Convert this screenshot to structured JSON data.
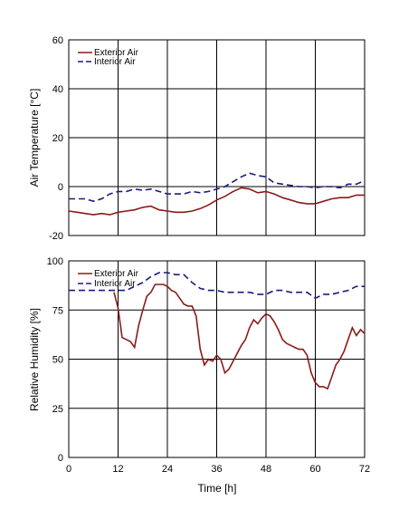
{
  "chart_data": [
    {
      "type": "line",
      "title": "",
      "xlabel": "",
      "ylabel": "Air Temperature [°C]",
      "xlim": [
        0,
        72
      ],
      "ylim": [
        -20,
        60
      ],
      "xticks": [
        0,
        12,
        24,
        36,
        48,
        60,
        72
      ],
      "xtick_labels_shown": false,
      "yticks": [
        -20,
        0,
        20,
        40,
        60
      ],
      "grid": true,
      "legend_position": "top-left",
      "series": [
        {
          "name": "Exterior Air",
          "color": "#8b1a1a",
          "dash": "solid",
          "points": [
            [
              0,
              -10
            ],
            [
              2,
              -10.5
            ],
            [
              4,
              -11
            ],
            [
              6,
              -11.5
            ],
            [
              8,
              -11
            ],
            [
              10,
              -11.5
            ],
            [
              12,
              -10.5
            ],
            [
              14,
              -10
            ],
            [
              16,
              -9.5
            ],
            [
              18,
              -8.5
            ],
            [
              20,
              -8
            ],
            [
              22,
              -9.5
            ],
            [
              24,
              -10
            ],
            [
              26,
              -10.5
            ],
            [
              28,
              -10.5
            ],
            [
              30,
              -10
            ],
            [
              32,
              -9
            ],
            [
              34,
              -7.5
            ],
            [
              36,
              -5.5
            ],
            [
              38,
              -4
            ],
            [
              40,
              -2
            ],
            [
              42,
              -0.5
            ],
            [
              44,
              -1
            ],
            [
              46,
              -2.5
            ],
            [
              48,
              -2
            ],
            [
              50,
              -3
            ],
            [
              52,
              -4.5
            ],
            [
              54,
              -5.5
            ],
            [
              56,
              -6.5
            ],
            [
              58,
              -7
            ],
            [
              60,
              -7
            ],
            [
              62,
              -6
            ],
            [
              64,
              -5
            ],
            [
              66,
              -4.5
            ],
            [
              68,
              -4.5
            ],
            [
              70,
              -3.5
            ],
            [
              72,
              -3.5
            ]
          ]
        },
        {
          "name": "Interior Air",
          "color": "#1a1a80",
          "dash": "dashed",
          "points": [
            [
              0,
              -5
            ],
            [
              2,
              -5
            ],
            [
              4,
              -5
            ],
            [
              6,
              -6
            ],
            [
              8,
              -5
            ],
            [
              10,
              -3
            ],
            [
              12,
              -2
            ],
            [
              14,
              -2
            ],
            [
              16,
              -1
            ],
            [
              18,
              -1.5
            ],
            [
              20,
              -1
            ],
            [
              22,
              -2
            ],
            [
              24,
              -3
            ],
            [
              26,
              -3
            ],
            [
              28,
              -3
            ],
            [
              30,
              -2
            ],
            [
              32,
              -2.5
            ],
            [
              34,
              -2
            ],
            [
              36,
              -1
            ],
            [
              38,
              0
            ],
            [
              40,
              2
            ],
            [
              42,
              4
            ],
            [
              44,
              5.5
            ],
            [
              46,
              4.5
            ],
            [
              48,
              4
            ],
            [
              50,
              1.5
            ],
            [
              52,
              1
            ],
            [
              54,
              0.5
            ],
            [
              56,
              0
            ],
            [
              58,
              0
            ],
            [
              60,
              -0.5
            ],
            [
              62,
              0
            ],
            [
              64,
              0
            ],
            [
              66,
              -0.5
            ],
            [
              68,
              1
            ],
            [
              70,
              1
            ],
            [
              72,
              2.5
            ]
          ]
        }
      ]
    },
    {
      "type": "line",
      "title": "",
      "xlabel": "Time [h]",
      "ylabel": "Relative Humidity [%]",
      "xlim": [
        0,
        72
      ],
      "ylim": [
        0,
        100
      ],
      "xticks": [
        0,
        12,
        24,
        36,
        48,
        60,
        72
      ],
      "xtick_labels_shown": true,
      "yticks": [
        0,
        25,
        50,
        75,
        100
      ],
      "grid": true,
      "legend_position": "top-left",
      "series": [
        {
          "name": "Exterior Air",
          "color": "#8b1a1a",
          "dash": "solid",
          "points": [
            [
              11,
              84
            ],
            [
              12,
              76
            ],
            [
              13,
              61
            ],
            [
              14,
              60
            ],
            [
              15,
              59
            ],
            [
              16,
              56
            ],
            [
              17,
              67
            ],
            [
              18,
              75
            ],
            [
              19,
              82
            ],
            [
              20,
              84
            ],
            [
              21,
              88
            ],
            [
              22,
              88
            ],
            [
              23,
              88
            ],
            [
              24,
              87
            ],
            [
              25,
              85
            ],
            [
              26,
              84
            ],
            [
              27,
              81
            ],
            [
              28,
              78
            ],
            [
              29,
              77
            ],
            [
              30,
              77
            ],
            [
              31,
              72
            ],
            [
              32,
              55
            ],
            [
              33,
              47
            ],
            [
              34,
              50
            ],
            [
              35,
              49
            ],
            [
              36,
              52
            ],
            [
              37,
              50
            ],
            [
              38,
              43
            ],
            [
              39,
              45
            ],
            [
              40,
              49
            ],
            [
              41,
              53
            ],
            [
              42,
              57
            ],
            [
              43,
              60
            ],
            [
              44,
              66
            ],
            [
              45,
              70
            ],
            [
              46,
              68
            ],
            [
              47,
              71
            ],
            [
              48,
              73
            ],
            [
              49,
              72
            ],
            [
              50,
              69
            ],
            [
              51,
              65
            ],
            [
              52,
              60
            ],
            [
              53,
              58
            ],
            [
              54,
              57
            ],
            [
              55,
              56
            ],
            [
              56,
              55
            ],
            [
              57,
              55
            ],
            [
              58,
              52
            ],
            [
              59,
              43
            ],
            [
              60,
              38
            ],
            [
              61,
              36
            ],
            [
              62,
              36
            ],
            [
              63,
              35
            ],
            [
              64,
              41
            ],
            [
              65,
              47
            ],
            [
              66,
              50
            ],
            [
              67,
              54
            ],
            [
              68,
              60
            ],
            [
              69,
              66
            ],
            [
              70,
              62
            ],
            [
              71,
              65
            ],
            [
              72,
              63
            ],
            [
              73,
              60
            ]
          ]
        },
        {
          "name": "Interior Air",
          "color": "#1a1a80",
          "dash": "dashed",
          "points": [
            [
              0,
              85
            ],
            [
              2,
              85
            ],
            [
              4,
              85
            ],
            [
              6,
              85
            ],
            [
              8,
              85
            ],
            [
              10,
              85
            ],
            [
              12,
              85
            ],
            [
              14,
              85
            ],
            [
              16,
              87
            ],
            [
              18,
              89
            ],
            [
              20,
              92
            ],
            [
              22,
              94
            ],
            [
              24,
              94
            ],
            [
              26,
              93
            ],
            [
              28,
              93
            ],
            [
              30,
              89
            ],
            [
              32,
              86
            ],
            [
              34,
              85
            ],
            [
              36,
              85
            ],
            [
              38,
              84
            ],
            [
              40,
              84
            ],
            [
              42,
              84
            ],
            [
              44,
              84
            ],
            [
              46,
              83
            ],
            [
              48,
              83
            ],
            [
              50,
              85
            ],
            [
              52,
              85
            ],
            [
              54,
              84
            ],
            [
              56,
              84
            ],
            [
              58,
              84
            ],
            [
              60,
              81
            ],
            [
              62,
              83
            ],
            [
              64,
              83
            ],
            [
              66,
              84
            ],
            [
              68,
              85
            ],
            [
              70,
              87
            ],
            [
              72,
              87
            ]
          ]
        }
      ]
    }
  ]
}
